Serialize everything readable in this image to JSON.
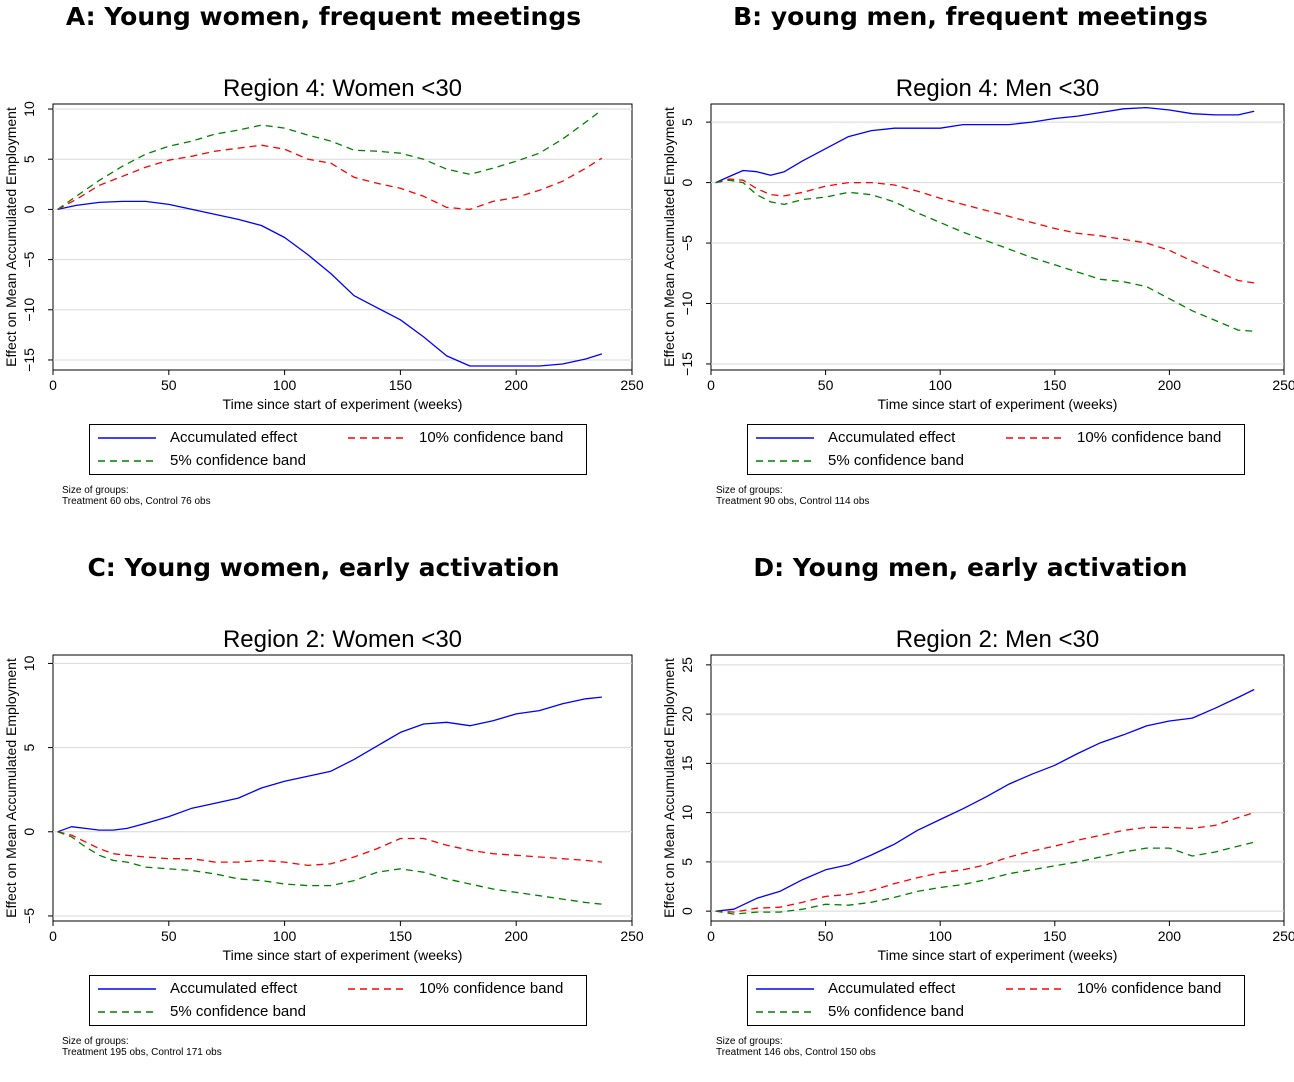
{
  "panels": [
    {
      "id": "A",
      "heading": "A: Young women, frequent meetings",
      "note_title": "Size of groups:",
      "note_text": "Treatment 60 obs, Control 76 obs"
    },
    {
      "id": "B",
      "heading": "B: young men, frequent meetings",
      "note_title": "Size of groups:",
      "note_text": "Treatment 90 obs, Control 114 obs"
    },
    {
      "id": "C",
      "heading": "C: Young women, early activation",
      "note_title": "Size of groups:",
      "note_text": "Treatment 195 obs, Control 171 obs"
    },
    {
      "id": "D",
      "heading": "D: Young men, early activation",
      "note_title": "Size of groups:",
      "note_text": "Treatment 146 obs, Control 150 obs"
    }
  ],
  "legend": {
    "accumulated": "Accumulated effect",
    "ci10": "10% confidence band",
    "ci5": "5% confidence band"
  },
  "colors": {
    "accumulated": "#0000ff",
    "ci10": "#ff0000",
    "ci5": "#008000"
  },
  "chart_data": [
    {
      "type": "line",
      "title": "Region 4: Women <30",
      "xlabel": "Time since start of experiment (weeks)",
      "ylabel": "Effect on Mean Accumulated Employment",
      "xlim": [
        0,
        250
      ],
      "ylim": [
        -16,
        10.5
      ],
      "xticks": [
        0,
        50,
        100,
        150,
        200,
        250
      ],
      "yticks": [
        -15,
        -10,
        -5,
        0,
        5,
        10
      ],
      "grid": "horizontal",
      "series": [
        {
          "name": "Accumulated effect",
          "x": [
            2,
            10,
            20,
            30,
            40,
            50,
            60,
            70,
            80,
            90,
            100,
            110,
            120,
            130,
            140,
            150,
            160,
            170,
            180,
            190,
            200,
            210,
            220,
            230,
            237
          ],
          "y": [
            0,
            0.4,
            0.7,
            0.8,
            0.8,
            0.5,
            0,
            -0.5,
            -1,
            -1.6,
            -2.8,
            -4.5,
            -6.4,
            -8.6,
            -9.8,
            -11,
            -12.7,
            -14.6,
            -15.6,
            -15.6,
            -15.6,
            -15.6,
            -15.4,
            -14.9,
            -14.4
          ]
        },
        {
          "name": "10% confidence band",
          "x": [
            2,
            10,
            20,
            30,
            40,
            50,
            60,
            70,
            80,
            90,
            100,
            110,
            120,
            130,
            140,
            150,
            160,
            170,
            180,
            190,
            200,
            210,
            220,
            230,
            237
          ],
          "y": [
            0,
            1,
            2.4,
            3.3,
            4.2,
            4.9,
            5.3,
            5.8,
            6.1,
            6.4,
            6,
            5,
            4.6,
            3.2,
            2.6,
            2.1,
            1.3,
            0.2,
            0,
            0.8,
            1.2,
            1.9,
            2.8,
            4.1,
            5.1
          ]
        },
        {
          "name": "5% confidence band",
          "x": [
            2,
            10,
            20,
            30,
            40,
            50,
            60,
            70,
            80,
            90,
            100,
            110,
            120,
            130,
            140,
            150,
            160,
            170,
            180,
            190,
            200,
            210,
            220,
            230,
            237
          ],
          "y": [
            0,
            1.3,
            2.9,
            4.3,
            5.5,
            6.3,
            6.8,
            7.5,
            7.9,
            8.4,
            8.1,
            7.4,
            6.8,
            5.9,
            5.8,
            5.6,
            5,
            4,
            3.5,
            4.1,
            4.8,
            5.6,
            7,
            8.7,
            9.9
          ]
        }
      ]
    },
    {
      "type": "line",
      "title": "Region 4: Men <30",
      "xlabel": "Time since start of experiment (weeks)",
      "ylabel": "Effect on Mean Accumulated Employment",
      "xlim": [
        0,
        250
      ],
      "ylim": [
        -15.5,
        6.5
      ],
      "xticks": [
        0,
        50,
        100,
        150,
        200,
        250
      ],
      "yticks": [
        -15,
        -10,
        -5,
        0,
        5
      ],
      "grid": "horizontal",
      "series": [
        {
          "name": "Accumulated effect",
          "x": [
            2,
            8,
            14,
            20,
            26,
            32,
            40,
            50,
            60,
            70,
            80,
            90,
            100,
            110,
            120,
            130,
            140,
            150,
            160,
            170,
            180,
            190,
            200,
            210,
            220,
            230,
            237
          ],
          "y": [
            0,
            0.5,
            1,
            0.9,
            0.6,
            0.9,
            1.8,
            2.8,
            3.8,
            4.3,
            4.5,
            4.5,
            4.5,
            4.8,
            4.8,
            4.8,
            5,
            5.3,
            5.5,
            5.8,
            6.1,
            6.2,
            6,
            5.7,
            5.6,
            5.6,
            5.9
          ]
        },
        {
          "name": "10% confidence band",
          "x": [
            2,
            8,
            14,
            20,
            26,
            32,
            40,
            50,
            60,
            70,
            80,
            90,
            100,
            110,
            120,
            130,
            140,
            150,
            160,
            170,
            180,
            190,
            200,
            210,
            220,
            230,
            237
          ],
          "y": [
            0,
            0.3,
            0.2,
            -0.5,
            -1,
            -1.1,
            -0.8,
            -0.3,
            0,
            0,
            -0.2,
            -0.7,
            -1.3,
            -1.8,
            -2.3,
            -2.8,
            -3.3,
            -3.8,
            -4.2,
            -4.4,
            -4.7,
            -5,
            -5.6,
            -6.5,
            -7.3,
            -8.1,
            -8.3
          ]
        },
        {
          "name": "5% confidence band",
          "x": [
            2,
            8,
            14,
            20,
            26,
            32,
            40,
            50,
            60,
            70,
            80,
            90,
            100,
            110,
            120,
            130,
            140,
            150,
            160,
            170,
            180,
            190,
            200,
            210,
            220,
            230,
            237
          ],
          "y": [
            0,
            0.2,
            0,
            -1,
            -1.6,
            -1.8,
            -1.4,
            -1.2,
            -0.8,
            -1,
            -1.6,
            -2.5,
            -3.3,
            -4.1,
            -4.8,
            -5.5,
            -6.2,
            -6.8,
            -7.4,
            -8,
            -8.2,
            -8.6,
            -9.6,
            -10.6,
            -11.4,
            -12.2,
            -12.3
          ]
        }
      ]
    },
    {
      "type": "line",
      "title": "Region 2: Women <30",
      "xlabel": "Time since start of experiment (weeks)",
      "ylabel": "Effect on Mean Accumulated Employment",
      "xlim": [
        0,
        250
      ],
      "ylim": [
        -5.3,
        10.5
      ],
      "xticks": [
        0,
        50,
        100,
        150,
        200,
        250
      ],
      "yticks": [
        -5,
        0,
        5,
        10
      ],
      "grid": "horizontal",
      "series": [
        {
          "name": "Accumulated effect",
          "x": [
            2,
            8,
            14,
            20,
            26,
            32,
            40,
            50,
            60,
            70,
            80,
            90,
            100,
            110,
            120,
            130,
            140,
            150,
            160,
            170,
            180,
            190,
            200,
            210,
            220,
            230,
            237
          ],
          "y": [
            0,
            0.3,
            0.2,
            0.1,
            0.1,
            0.2,
            0.5,
            0.9,
            1.4,
            1.7,
            2,
            2.6,
            3,
            3.3,
            3.6,
            4.3,
            5.1,
            5.9,
            6.4,
            6.5,
            6.3,
            6.6,
            7,
            7.2,
            7.6,
            7.9,
            8
          ]
        },
        {
          "name": "10% confidence band",
          "x": [
            2,
            8,
            14,
            20,
            26,
            32,
            40,
            50,
            60,
            70,
            80,
            90,
            100,
            110,
            120,
            130,
            140,
            150,
            160,
            170,
            180,
            190,
            200,
            210,
            220,
            230,
            237
          ],
          "y": [
            0,
            -0.2,
            -0.6,
            -1,
            -1.3,
            -1.4,
            -1.5,
            -1.6,
            -1.6,
            -1.8,
            -1.8,
            -1.7,
            -1.8,
            -2,
            -1.9,
            -1.5,
            -1,
            -0.4,
            -0.4,
            -0.8,
            -1.1,
            -1.3,
            -1.4,
            -1.5,
            -1.6,
            -1.7,
            -1.8
          ]
        },
        {
          "name": "5% confidence band",
          "x": [
            2,
            8,
            14,
            20,
            26,
            32,
            40,
            50,
            60,
            70,
            80,
            90,
            100,
            110,
            120,
            130,
            140,
            150,
            160,
            170,
            180,
            190,
            200,
            210,
            220,
            230,
            237
          ],
          "y": [
            0,
            -0.3,
            -0.9,
            -1.4,
            -1.7,
            -1.8,
            -2.1,
            -2.2,
            -2.3,
            -2.5,
            -2.8,
            -2.9,
            -3.1,
            -3.2,
            -3.2,
            -2.9,
            -2.4,
            -2.2,
            -2.4,
            -2.8,
            -3.1,
            -3.4,
            -3.6,
            -3.8,
            -4,
            -4.2,
            -4.3
          ]
        }
      ]
    },
    {
      "type": "line",
      "title": "Region 2: Men <30",
      "xlabel": "Time since start of experiment (weeks)",
      "ylabel": "Effect on Mean Accumulated Employment",
      "xlim": [
        0,
        250
      ],
      "ylim": [
        -1,
        26
      ],
      "xticks": [
        0,
        50,
        100,
        150,
        200,
        250
      ],
      "yticks": [
        0,
        5,
        10,
        15,
        20,
        25
      ],
      "grid": "horizontal",
      "series": [
        {
          "name": "Accumulated effect",
          "x": [
            2,
            10,
            20,
            30,
            40,
            50,
            60,
            70,
            80,
            90,
            100,
            110,
            120,
            130,
            140,
            150,
            160,
            170,
            180,
            190,
            200,
            210,
            220,
            230,
            237
          ],
          "y": [
            0,
            0.2,
            1.3,
            2,
            3.2,
            4.2,
            4.7,
            5.7,
            6.8,
            8.2,
            9.3,
            10.4,
            11.6,
            12.9,
            13.9,
            14.8,
            16,
            17.1,
            17.9,
            18.8,
            19.3,
            19.6,
            20.6,
            21.7,
            22.5
          ]
        },
        {
          "name": "10% confidence band",
          "x": [
            2,
            10,
            20,
            30,
            40,
            50,
            60,
            70,
            80,
            90,
            100,
            110,
            120,
            130,
            140,
            150,
            160,
            170,
            180,
            190,
            200,
            210,
            220,
            230,
            237
          ],
          "y": [
            0,
            -0.1,
            0.3,
            0.4,
            0.9,
            1.5,
            1.7,
            2.1,
            2.8,
            3.4,
            3.9,
            4.2,
            4.7,
            5.5,
            6.1,
            6.6,
            7.2,
            7.7,
            8.2,
            8.5,
            8.5,
            8.4,
            8.7,
            9.5,
            10
          ]
        },
        {
          "name": "5% confidence band",
          "x": [
            2,
            10,
            20,
            30,
            40,
            50,
            60,
            70,
            80,
            90,
            100,
            110,
            120,
            130,
            140,
            150,
            160,
            170,
            180,
            190,
            200,
            210,
            220,
            230,
            237
          ],
          "y": [
            0,
            -0.3,
            -0.1,
            -0.1,
            0.2,
            0.7,
            0.6,
            0.9,
            1.4,
            2,
            2.4,
            2.7,
            3.2,
            3.8,
            4.2,
            4.6,
            5,
            5.5,
            6,
            6.4,
            6.4,
            5.6,
            6,
            6.6,
            7
          ]
        }
      ]
    }
  ]
}
